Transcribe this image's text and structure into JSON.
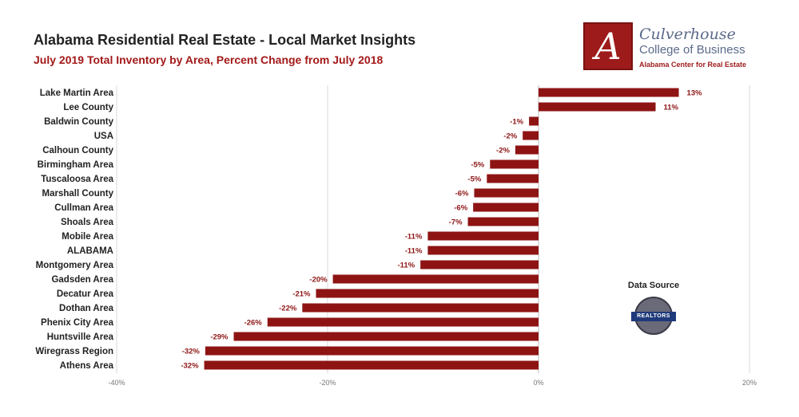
{
  "header": {
    "title": "Alabama Residential Real Estate - Local Market Insights",
    "subtitle": "July 2019 Total Inventory by Area, Percent Change from July 2018"
  },
  "logo": {
    "letter": "A",
    "name": "Culverhouse",
    "college": "College of Business",
    "center": "Alabama Center for Real Estate"
  },
  "source": {
    "label": "Data Source",
    "seal_text": "REALTORS"
  },
  "chart_data": {
    "type": "bar",
    "orientation": "horizontal",
    "categories": [
      "Lake Martin Area",
      "Lee County",
      "Baldwin County",
      "USA",
      "Calhoun County",
      "Birmingham Area",
      "Tuscaloosa Area",
      "Marshall County",
      "Cullman Area",
      "Shoals Area",
      "Mobile Area",
      "ALABAMA",
      "Montgomery Area",
      "Gadsden Area",
      "Decatur Area",
      "Dothan Area",
      "Phenix City Area",
      "Huntsville Area",
      "Wiregrass Region",
      "Athens Area"
    ],
    "values": [
      13.3,
      11.1,
      -0.9,
      -1.5,
      -2.2,
      -4.6,
      -4.9,
      -6.1,
      -6.2,
      -6.7,
      -10.5,
      -10.5,
      -11.2,
      -19.5,
      -21.1,
      -22.4,
      -25.7,
      -28.9,
      -31.6,
      -31.7
    ],
    "labels": [
      "13%",
      "11%",
      "-1%",
      "-2%",
      "-2%",
      "-5%",
      "-5%",
      "-6%",
      "-6%",
      "-7%",
      "-11%",
      "-11%",
      "-11%",
      "-20%",
      "-21%",
      "-22%",
      "-26%",
      "-29%",
      "-32%",
      "-32%"
    ],
    "xlim": [
      -40,
      20
    ],
    "xticks": [
      "-40%",
      "-20%",
      "0%",
      "20%"
    ],
    "xtick_values": [
      -40,
      -20,
      0,
      20
    ],
    "grid": true,
    "colors": {
      "bar": "#8e1414",
      "label": "#8e1414",
      "grid": "#d8d8d8"
    }
  }
}
